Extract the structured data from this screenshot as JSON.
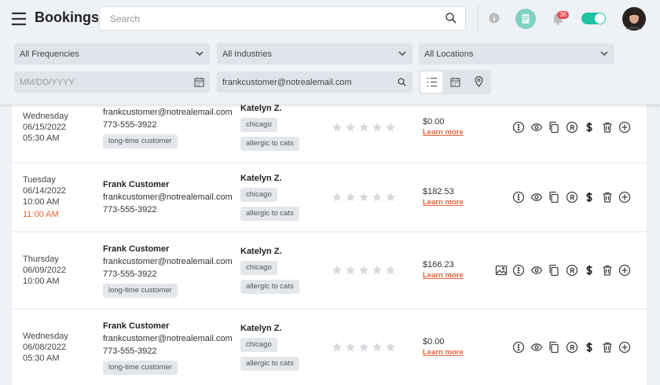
{
  "header": {
    "title": "Bookings",
    "search_placeholder": "Search",
    "notification_count": "36"
  },
  "filters": {
    "frequency": "All Frequencies",
    "industry": "All Industries",
    "location": "All Locations",
    "date_placeholder": "MM/DD/YYYY",
    "email": "frankcustomer@notrealemail.com"
  },
  "bookings": [
    {
      "day": "Wednesday",
      "date": "06/15/2022",
      "time": "05:30 AM",
      "email": "frankcustomer@notrealemail.com",
      "phone": "773-555-3922",
      "customer_tags": [
        "long-time customer"
      ],
      "provider": "Katelyn Z.",
      "provider_tags": [
        "chicago",
        "allergic to cats"
      ],
      "price": "$0.00",
      "link": "Learn more"
    },
    {
      "day": "Tuesday",
      "date": "06/14/2022",
      "time": "10:00 AM",
      "end_time": "11:00 AM",
      "name": "Frank Customer",
      "email": "frankcustomer@notrealemail.com",
      "phone": "773-555-3922",
      "customer_tags": [],
      "provider": "Katelyn Z.",
      "provider_tags": [
        "chicago",
        "allergic to cats"
      ],
      "price": "$182.53",
      "link": "Learn more"
    },
    {
      "day": "Thursday",
      "date": "06/09/2022",
      "time": "10:00 AM",
      "name": "Frank Customer",
      "email": "frankcustomer@notrealemail.com",
      "phone": "773-555-3922",
      "customer_tags": [
        "long-time customer"
      ],
      "provider": "Katelyn Z.",
      "provider_tags": [
        "chicago",
        "allergic to cats"
      ],
      "price": "$166.23",
      "link": "Learn more",
      "has_photo": true
    },
    {
      "day": "Wednesday",
      "date": "06/08/2022",
      "time": "05:30 AM",
      "name": "Frank Customer",
      "email": "frankcustomer@notrealemail.com",
      "phone": "773-555-3922",
      "customer_tags": [
        "long-time customer"
      ],
      "provider": "Katelyn Z.",
      "provider_tags": [
        "chicago",
        "allergic to cats"
      ],
      "price": "$0.00",
      "link": "Learn more"
    }
  ]
}
